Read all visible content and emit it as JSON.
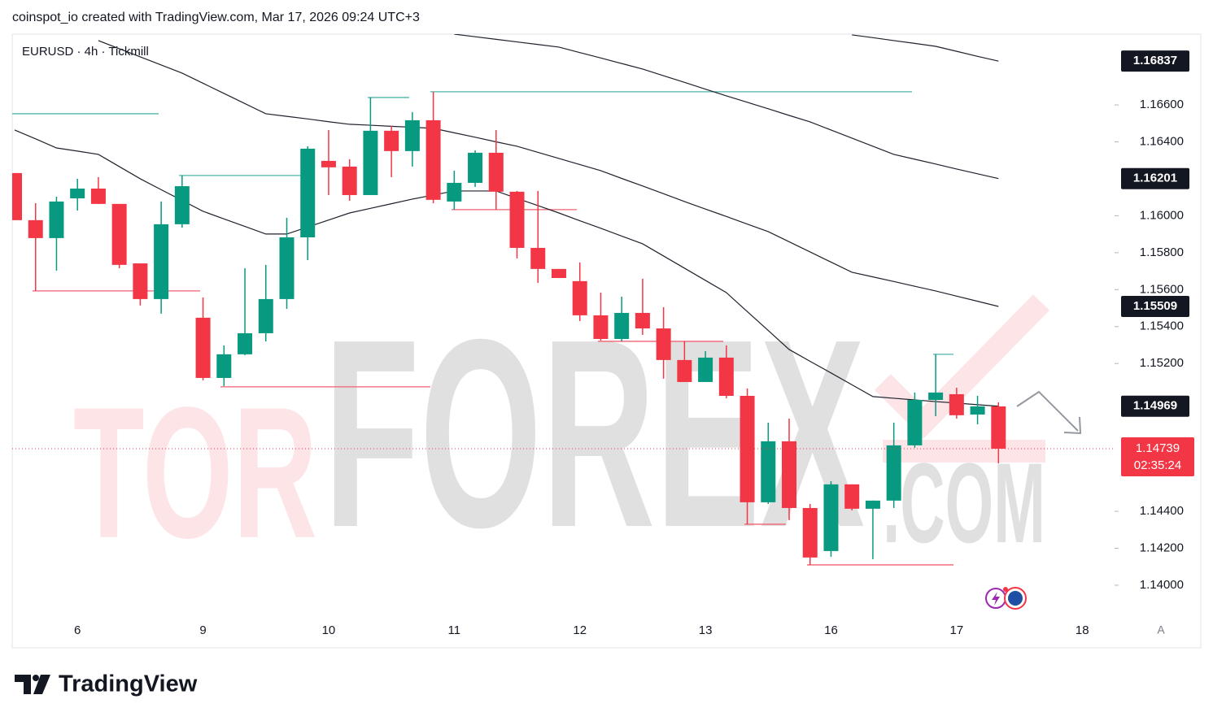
{
  "header": "coinspot_io created with TradingView.com, Mar 17, 2026 09:24 UTC+3",
  "footer_brand": "TradingView",
  "scale_button": "A",
  "watermark": [
    "TOR",
    "FOREX",
    ".COM"
  ],
  "chart_data": {
    "type": "candlestick",
    "title": "EURUSD · 4h · Tickmill",
    "categories": [
      null,
      null,
      null,
      "6",
      null,
      null,
      null,
      null,
      null,
      "9",
      null,
      null,
      null,
      null,
      null,
      "10",
      null,
      null,
      null,
      null,
      null,
      "11",
      null,
      null,
      null,
      null,
      null,
      "12",
      null,
      null,
      null,
      null,
      null,
      "13",
      null,
      null,
      null,
      null,
      null,
      "16",
      null,
      null,
      null,
      null,
      null,
      "17",
      null,
      null,
      null,
      null,
      null,
      "18"
    ],
    "open": [
      1.16231,
      1.15976,
      1.15879,
      1.16094,
      1.16147,
      1.16064,
      1.15742,
      1.15549,
      1.15954,
      1.15448,
      1.15122,
      1.1525,
      1.15364,
      1.15549,
      1.15883,
      1.16297,
      1.16266,
      1.16112,
      1.1646,
      1.1635,
      1.16517,
      1.16077,
      1.16178,
      1.16341,
      1.1613,
      1.15826,
      1.15712,
      1.15646,
      1.15461,
      1.15333,
      1.15474,
      1.1539,
      1.15219,
      1.151,
      1.15232,
      1.15025,
      1.14449,
      1.14779,
      1.14418,
      1.14185,
      1.14546,
      1.14414,
      1.14458,
      1.14757,
      1.15003,
      1.15034,
      1.14924,
      1.14968,
      null,
      null,
      null,
      null
    ],
    "high": [
      1.16231,
      1.16068,
      1.16103,
      1.162,
      1.16209,
      1.16064,
      1.15742,
      1.16077,
      1.16218,
      1.15558,
      1.15298,
      1.15716,
      1.15734,
      1.15989,
      1.16376,
      1.16464,
      1.16306,
      1.1664,
      1.16486,
      1.16561,
      1.16671,
      1.16244,
      1.16354,
      1.16464,
      1.16134,
      1.16134,
      1.15712,
      1.15747,
      1.15584,
      1.15562,
      1.15659,
      1.15505,
      1.1532,
      1.15267,
      1.15298,
      1.15065,
      1.1488,
      1.14902,
      1.1444,
      1.14563,
      1.14546,
      1.14458,
      1.1488,
      1.15043,
      1.1525,
      1.15069,
      1.15025,
      1.1499,
      null,
      null,
      null,
      null
    ],
    "low": [
      1.15976,
      1.15593,
      1.15703,
      1.16028,
      1.16064,
      1.15716,
      1.15514,
      1.1547,
      1.15936,
      1.15109,
      1.15078,
      1.15245,
      1.1532,
      1.15496,
      1.1576,
      1.16112,
      1.16081,
      1.16112,
      1.16209,
      1.16266,
      1.16068,
      1.16033,
      1.16156,
      1.16033,
      1.15769,
      1.15637,
      1.15663,
      1.1543,
      1.15324,
      1.1532,
      1.15355,
      1.15118,
      1.151,
      1.151,
      1.15012,
      1.1433,
      1.1444,
      1.14352,
      1.1411,
      1.14154,
      1.14405,
      1.14141,
      1.14418,
      1.14744,
      1.14915,
      1.14902,
      1.14871,
      1.1466,
      null,
      null,
      null,
      null
    ],
    "close": [
      1.15976,
      1.15879,
      1.16077,
      1.16147,
      1.16064,
      1.15734,
      1.15549,
      1.15954,
      1.1616,
      1.15122,
      1.1525,
      1.15364,
      1.15549,
      1.15883,
      1.16363,
      1.16262,
      1.16112,
      1.1646,
      1.1635,
      1.16517,
      1.16086,
      1.16178,
      1.16341,
      1.1613,
      1.15826,
      1.15712,
      1.15663,
      1.15461,
      1.15333,
      1.15474,
      1.1539,
      1.15219,
      1.151,
      1.15232,
      1.15025,
      1.14449,
      1.14779,
      1.14418,
      1.1415,
      1.14546,
      1.14414,
      1.14458,
      1.14757,
      1.15003,
      1.15043,
      1.1492,
      1.14968,
      1.14739,
      null,
      null,
      null,
      null
    ],
    "up_color": "#089981",
    "down_color": "#f23645",
    "countdown": "02:35:24",
    "series": [
      {
        "color": "#1e222d",
        "values": [
          null,
          null,
          null,
          null,
          null,
          null,
          null,
          null,
          null,
          null,
          null,
          null,
          null,
          null,
          null,
          null,
          null,
          null,
          null,
          null,
          null,
          null,
          null,
          null,
          null,
          null,
          null,
          null,
          null,
          null,
          null,
          null,
          null,
          null,
          null,
          null,
          null,
          null,
          null,
          null,
          1.16979,
          1.16964,
          1.16948,
          1.16933,
          1.16917,
          1.1689,
          1.16863,
          1.16837,
          null,
          null,
          null,
          null
        ]
      },
      {
        "color": "#1e222d",
        "values": [
          null,
          null,
          null,
          null,
          null,
          null,
          null,
          null,
          null,
          null,
          null,
          null,
          null,
          null,
          null,
          null,
          null,
          null,
          null,
          null,
          null,
          1.16983,
          1.16969,
          1.16955,
          1.16941,
          1.16927,
          1.16913,
          1.16883,
          1.16854,
          1.16824,
          1.16794,
          1.16758,
          1.16722,
          1.16685,
          1.16649,
          1.16614,
          1.16579,
          1.16543,
          1.16508,
          1.16464,
          1.1642,
          1.16376,
          1.16332,
          1.16306,
          1.1628,
          1.16253,
          1.16227,
          1.16201,
          null,
          null,
          null,
          null
        ]
      },
      {
        "color": "#1e222d",
        "values": [
          null,
          null,
          null,
          null,
          1.16948,
          1.16904,
          1.1686,
          1.16816,
          1.16772,
          1.16717,
          1.16662,
          1.16607,
          1.16552,
          1.16538,
          1.16524,
          1.16509,
          1.16495,
          1.1649,
          1.16484,
          1.16479,
          1.16473,
          1.16449,
          1.16425,
          1.164,
          1.16376,
          1.16343,
          1.1631,
          1.16277,
          1.16244,
          1.16202,
          1.16161,
          1.16119,
          1.16077,
          1.16036,
          1.15996,
          1.15955,
          1.15914,
          1.15859,
          1.15804,
          1.15749,
          1.15694,
          1.15669,
          1.15644,
          1.15618,
          1.15593,
          1.15565,
          1.15537,
          1.15509,
          null,
          null,
          null,
          null
        ]
      },
      {
        "color": "#1e222d",
        "values": [
          1.16464,
          1.16416,
          1.16367,
          1.1635,
          1.16332,
          1.16266,
          1.162,
          1.16141,
          1.16083,
          1.16024,
          1.15983,
          1.15942,
          1.15901,
          1.15901,
          1.15939,
          1.15977,
          1.16015,
          1.1604,
          1.16065,
          1.1609,
          1.16112,
          1.16134,
          1.16134,
          1.16134,
          1.16094,
          1.16055,
          1.16015,
          1.15973,
          1.15932,
          1.1589,
          1.15848,
          1.15782,
          1.15716,
          1.1565,
          1.15584,
          1.15481,
          1.15379,
          1.15276,
          1.15212,
          1.15149,
          1.15085,
          1.15021,
          1.15012,
          1.15003,
          1.14994,
          1.14986,
          1.14977,
          1.14969,
          null,
          null,
          null,
          null
        ]
      }
    ],
    "levels": [
      {
        "value": 1.16552,
        "color": "#4db6ac"
      },
      {
        "value": 1.16218,
        "color": "#4db6ac"
      },
      {
        "value": 1.1664,
        "color": "#4db6ac"
      },
      {
        "value": 1.16671,
        "color": "#4db6ac"
      },
      {
        "value": 1.1525,
        "color": "#4db6ac"
      },
      {
        "value": 1.15593,
        "color": "#f06272"
      },
      {
        "value": 1.15074,
        "color": "#f06272"
      },
      {
        "value": 1.16033,
        "color": "#f06272"
      },
      {
        "value": 1.1532,
        "color": "#f06272"
      },
      {
        "value": 1.1433,
        "color": "#f06272"
      },
      {
        "value": 1.1411,
        "color": "#f06272"
      }
    ],
    "ylim": [
      1.13815,
      1.16983
    ],
    "yticks": [
      {
        "value": 1.166,
        "label": "1.16600"
      },
      {
        "value": 1.164,
        "label": "1.16400"
      },
      {
        "value": 1.16,
        "label": "1.16000"
      },
      {
        "value": 1.158,
        "label": "1.15800"
      },
      {
        "value": 1.156,
        "label": "1.15600"
      },
      {
        "value": 1.154,
        "label": "1.15400"
      },
      {
        "value": 1.152,
        "label": "1.15200"
      },
      {
        "value": 1.144,
        "label": "1.14400"
      },
      {
        "value": 1.142,
        "label": "1.14200"
      },
      {
        "value": 1.14,
        "label": "1.14000"
      }
    ]
  }
}
